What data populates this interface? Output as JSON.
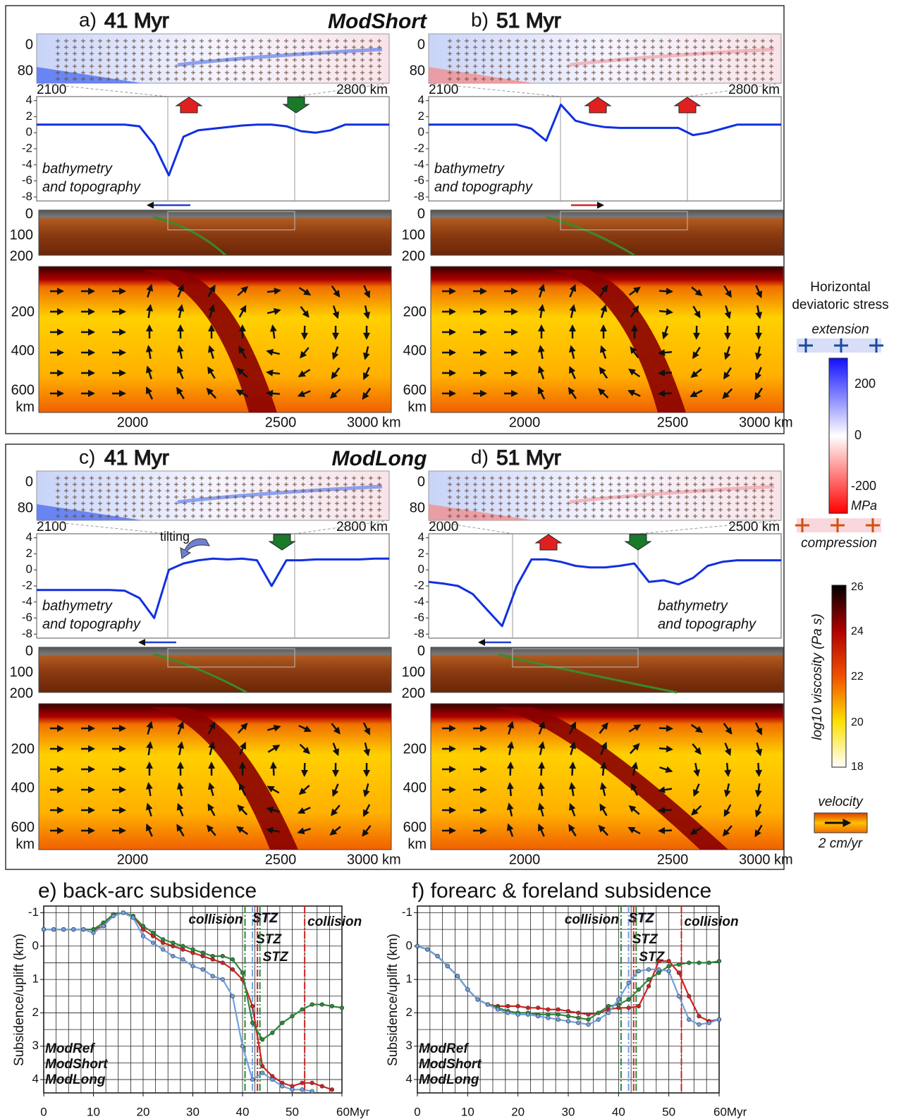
{
  "figure": {
    "groups": [
      {
        "title": "ModShort"
      },
      {
        "title": "ModLong"
      }
    ],
    "topo_ylim": [
      -8.5,
      4.5
    ],
    "topo_yticks": [
      4,
      2,
      0,
      -2,
      -4,
      -6,
      -8
    ],
    "panels": [
      {
        "label": "a)",
        "time": "41 Myr",
        "stress_depth": [
          "0",
          "80"
        ],
        "stress_x": [
          "2100",
          "2800 km"
        ],
        "topo_values": [
          1,
          1,
          1,
          1,
          1,
          1,
          1,
          0.8,
          -1.5,
          -5.3,
          -0.5,
          0.3,
          0.5,
          0.7,
          0.9,
          1,
          1,
          0.8,
          0.2,
          0,
          0.3,
          1,
          1,
          1,
          1
        ],
        "annotation": [
          "bathymetry",
          "and topography"
        ],
        "section_depth": [
          "0",
          "100",
          "200"
        ],
        "mantle_depth": [
          "200",
          "400",
          "600",
          "km"
        ],
        "mantle_x": [
          "2000",
          "2500",
          "3000 km"
        ]
      },
      {
        "label": "b)",
        "time": "51 Myr",
        "stress_depth": [
          "0",
          "80"
        ],
        "stress_x": [
          "2100",
          "2800 km"
        ],
        "topo_values": [
          1,
          1,
          1,
          1,
          1,
          1,
          1,
          0.5,
          -1,
          3.5,
          1.5,
          1,
          0.7,
          0.6,
          0.6,
          0.6,
          0.6,
          0.6,
          -0.3,
          0,
          0.5,
          1,
          1,
          1,
          1
        ],
        "annotation": [
          "bathymetry",
          "and topography"
        ],
        "section_depth": [
          "0",
          "100",
          "200"
        ],
        "mantle_depth": [
          "200",
          "400",
          "600",
          "km"
        ],
        "mantle_x": [
          "2000",
          "2500",
          "3000 km"
        ]
      },
      {
        "label": "c)",
        "time": "41 Myr",
        "stress_depth": [
          "0",
          "80"
        ],
        "stress_x": [
          "2100",
          "2800 km"
        ],
        "topo_values": [
          -2.5,
          -2.5,
          -2.5,
          -2.5,
          -2.5,
          -2.5,
          -2.6,
          -3.5,
          -6,
          0,
          0.8,
          1.2,
          1.4,
          1.3,
          1.4,
          1.2,
          -2,
          1.2,
          1.2,
          1.3,
          1.3,
          1.3,
          1.3,
          1.4,
          1.4
        ],
        "annotation": [
          "bathymetry",
          "and topography"
        ],
        "note": "tilting",
        "section_depth": [
          "0",
          "100",
          "200"
        ],
        "mantle_depth": [
          "200",
          "400",
          "600",
          "km"
        ],
        "mantle_x": [
          "2000",
          "2500",
          "3000 km"
        ]
      },
      {
        "label": "d)",
        "time": "51 Myr",
        "stress_depth": [
          "0",
          "80"
        ],
        "stress_x": [
          "2000",
          "2500 km"
        ],
        "topo_values": [
          -1.5,
          -1.7,
          -2,
          -3,
          -5,
          -7,
          -2,
          1.3,
          1.3,
          1,
          0.5,
          0.3,
          0.3,
          0.5,
          0.8,
          -1.5,
          -1.3,
          -1.8,
          -1,
          0.5,
          1,
          1.2,
          1.2,
          1.2,
          1.2
        ],
        "annotation": [
          "bathymetry",
          "and topography"
        ],
        "section_depth": [
          "0",
          "100",
          "200"
        ],
        "mantle_depth": [
          "200",
          "400",
          "600",
          "km"
        ],
        "mantle_x": [
          "2000",
          "2500",
          "3000 km"
        ]
      }
    ],
    "stress_colorbar": {
      "title": [
        "Horizontal",
        "deviatoric stress"
      ],
      "extension": "extension",
      "compression": "compression",
      "ticks": [
        "200",
        "0",
        "-200"
      ],
      "unit": "MPa"
    },
    "viscosity_colorbar": {
      "title": "log10 viscosity (Pa s)",
      "ticks": [
        "26",
        "24",
        "22",
        "20",
        "18"
      ]
    },
    "velocity_legend": {
      "title": "velocity",
      "scale": "2 cm/yr"
    }
  },
  "chart_data": [
    {
      "type": "line",
      "title": "e) back-arc subsidence",
      "ylabel": "Subsidence/uplift (km)",
      "x": [
        0,
        2,
        4,
        6,
        8,
        10,
        12,
        14,
        16,
        18,
        20,
        22,
        24,
        26,
        28,
        30,
        32,
        34,
        36,
        38,
        40,
        42,
        44,
        46,
        48,
        50,
        52,
        54,
        56,
        58,
        60
      ],
      "series": [
        {
          "name": "ModRef",
          "color": "#d42020",
          "values": [
            -0.5,
            -0.5,
            -0.5,
            -0.5,
            -0.5,
            -0.5,
            -0.6,
            -0.95,
            -1.0,
            -0.9,
            -0.5,
            -0.3,
            -0.1,
            0.0,
            0.1,
            0.2,
            0.3,
            0.4,
            0.5,
            0.7,
            1.0,
            1.8,
            3.6,
            3.9,
            4.1,
            4.2,
            4.1,
            4.1,
            4.2,
            4.3,
            null
          ]
        },
        {
          "name": "ModShort",
          "color": "#2a8a3a",
          "values": [
            -0.5,
            -0.5,
            -0.5,
            -0.5,
            -0.5,
            -0.5,
            -0.7,
            -0.95,
            -1.0,
            -0.9,
            -0.6,
            -0.4,
            -0.2,
            -0.1,
            0.0,
            0.1,
            0.2,
            0.3,
            0.3,
            0.4,
            0.8,
            2.3,
            2.8,
            2.6,
            2.3,
            2.1,
            1.9,
            1.75,
            1.75,
            1.8,
            1.85
          ]
        },
        {
          "name": "ModLong",
          "color": "#6fa0e0",
          "values": [
            -0.5,
            -0.5,
            -0.5,
            -0.5,
            -0.5,
            -0.4,
            -0.6,
            -0.9,
            -1.0,
            -0.85,
            -0.3,
            -0.1,
            0.1,
            0.3,
            0.4,
            0.6,
            0.7,
            0.9,
            1.0,
            1.5,
            3.0,
            4.0,
            3.8,
            4.0,
            4.2,
            4.3,
            4.3,
            4.35,
            null,
            null,
            null
          ]
        }
      ],
      "events": [
        {
          "x": 40.5,
          "color": "#2a8a3a",
          "label": "collision"
        },
        {
          "x": 42,
          "color": "#6fa0e0",
          "label": "STZ"
        },
        {
          "x": 43,
          "color": "#d42020",
          "label": "STZ"
        },
        {
          "x": 43.5,
          "color": "#2a8a3a",
          "label": "STZ"
        },
        {
          "x": 52.5,
          "color": "#d42020",
          "label": "collision"
        }
      ],
      "xlim": [
        0,
        60
      ],
      "xticks": [
        0,
        10,
        20,
        30,
        40,
        50,
        {
          "value": 60,
          "label": "60Myr"
        }
      ],
      "ylim": [
        -1.2,
        4.4
      ],
      "yticks": [
        -1,
        0,
        1,
        2,
        3,
        4
      ],
      "y_inverted": true,
      "grid": true,
      "grid_step_x": 2.5,
      "grid_step_y": 0.5,
      "legend": "lower left"
    },
    {
      "type": "line",
      "title": "f) forearc & foreland subsidence",
      "ylabel": "Subsidence/uplift (km)",
      "x": [
        0,
        2,
        4,
        6,
        8,
        10,
        12,
        14,
        16,
        18,
        20,
        22,
        24,
        26,
        28,
        30,
        32,
        34,
        36,
        38,
        40,
        42,
        44,
        46,
        48,
        50,
        52,
        54,
        56,
        58,
        60
      ],
      "series": [
        {
          "name": "ModRef",
          "color": "#d42020",
          "values": [
            0,
            0.1,
            0.3,
            0.6,
            0.9,
            1.3,
            1.6,
            1.75,
            1.8,
            1.8,
            1.8,
            1.85,
            1.85,
            1.9,
            1.9,
            1.95,
            2.0,
            2.05,
            2.0,
            1.9,
            1.85,
            1.85,
            1.8,
            1.2,
            0.45,
            0.45,
            0.8,
            1.5,
            2.1,
            2.25,
            2.2
          ]
        },
        {
          "name": "ModShort",
          "color": "#2a8a3a",
          "values": [
            0,
            0.1,
            0.3,
            0.6,
            0.9,
            1.3,
            1.6,
            1.75,
            1.85,
            1.95,
            2.0,
            2.0,
            2.05,
            2.05,
            2.05,
            2.1,
            2.15,
            2.2,
            2.0,
            1.8,
            1.75,
            1.6,
            1.3,
            1.0,
            0.8,
            0.6,
            0.55,
            0.5,
            0.5,
            0.5,
            0.45
          ]
        },
        {
          "name": "ModLong",
          "color": "#6fa0e0",
          "values": [
            0,
            0.1,
            0.3,
            0.6,
            0.9,
            1.3,
            1.6,
            1.75,
            1.9,
            2.0,
            2.05,
            2.05,
            2.1,
            2.15,
            2.2,
            2.25,
            2.3,
            2.35,
            2.2,
            2.0,
            1.6,
            1.1,
            0.75,
            0.7,
            0.7,
            0.75,
            1.5,
            2.2,
            2.35,
            2.3,
            2.2
          ]
        }
      ],
      "events": [
        {
          "x": 40.5,
          "color": "#2a8a3a",
          "label": "collision"
        },
        {
          "x": 42,
          "color": "#6fa0e0",
          "label": "STZ"
        },
        {
          "x": 43,
          "color": "#d42020",
          "label": "STZ"
        },
        {
          "x": 43.5,
          "color": "#2a8a3a",
          "label": "STZ"
        },
        {
          "x": 52.5,
          "color": "#d42020",
          "label": "collision"
        }
      ],
      "xlim": [
        0,
        60
      ],
      "xticks": [
        0,
        10,
        20,
        30,
        40,
        50,
        {
          "value": 60,
          "label": "60Myr"
        }
      ],
      "ylim": [
        -1.2,
        4.4
      ],
      "yticks": [
        -1,
        0,
        1,
        2,
        3,
        4
      ],
      "y_inverted": true,
      "grid": true,
      "grid_step_x": 2.5,
      "grid_step_y": 0.5,
      "legend": "lower left"
    }
  ]
}
